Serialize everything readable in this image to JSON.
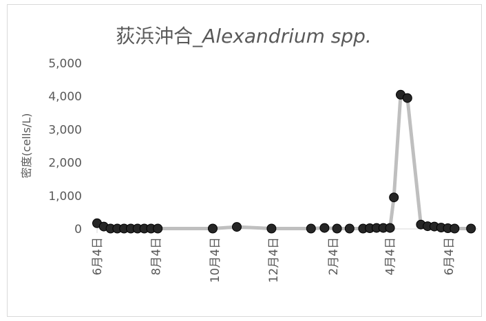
{
  "chart_data": {
    "type": "line",
    "title": "荻浜沖合_",
    "title_italic": "Alexandrium spp.",
    "ylabel": "密度(cells/L)",
    "xlabel": "",
    "ylim": [
      0,
      5000
    ],
    "yticks": [
      0,
      1000,
      2000,
      3000,
      4000,
      5000
    ],
    "ytick_labels": [
      "0",
      "1,000",
      "2,000",
      "3,000",
      "4,000",
      "5,000"
    ],
    "xlim": [
      "2021-06-04",
      "2022-07-04"
    ],
    "xticks": [
      "2021-06-04",
      "2021-08-04",
      "2021-10-04",
      "2021-12-04",
      "2022-02-04",
      "2022-04-04",
      "2022-06-04"
    ],
    "xtick_labels": [
      "6月4日",
      "8月4日",
      "10月4日",
      "12月4日",
      "2月4日",
      "4月4日",
      "6月4日"
    ],
    "grid": false,
    "line_color": "#bfbfbf",
    "marker_color": "#262626",
    "series": [
      {
        "x": [
          "2021-06-04",
          "2021-06-11",
          "2021-06-18",
          "2021-06-25",
          "2021-07-02",
          "2021-07-09",
          "2021-07-16",
          "2021-07-23",
          "2021-07-30",
          "2021-08-06",
          "2021-10-02",
          "2021-10-27",
          "2021-12-02",
          "2022-01-12",
          "2022-01-26",
          "2022-02-08",
          "2022-02-21",
          "2022-03-07",
          "2022-03-14",
          "2022-03-21",
          "2022-03-28",
          "2022-04-04",
          "2022-04-08",
          "2022-04-15",
          "2022-04-22",
          "2022-05-06",
          "2022-05-13",
          "2022-05-20",
          "2022-05-27",
          "2022-06-03",
          "2022-06-10",
          "2022-06-27"
        ],
        "y": [
          170,
          70,
          10,
          10,
          10,
          10,
          10,
          10,
          10,
          10,
          10,
          60,
          10,
          10,
          30,
          10,
          10,
          10,
          20,
          30,
          30,
          30,
          950,
          4050,
          3950,
          130,
          80,
          70,
          40,
          20,
          10,
          10
        ]
      }
    ]
  }
}
